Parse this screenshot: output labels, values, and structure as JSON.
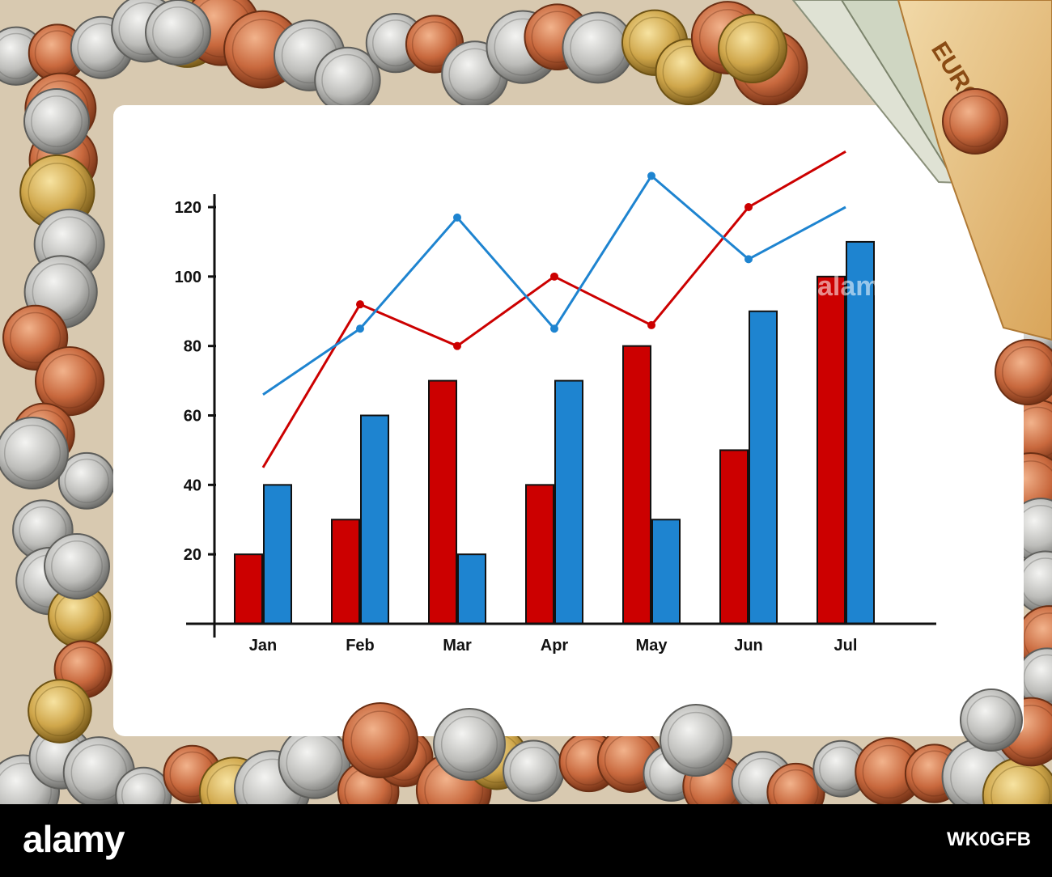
{
  "watermark": {
    "logo": "alamy",
    "image_id": "WK0GFB",
    "overlay": "alamy"
  },
  "colors": {
    "red": "#cc0000",
    "blue": "#1e84d0",
    "axis": "#111111",
    "paper": "#ffffff"
  },
  "chart_data": {
    "type": "bar",
    "title": "",
    "xlabel": "",
    "ylabel": "",
    "categories": [
      "Jan",
      "Feb",
      "Mar",
      "Apr",
      "May",
      "Jun",
      "Jul"
    ],
    "ylim": [
      0,
      120
    ],
    "yticks": [
      "20",
      "40",
      "60",
      "80",
      "100",
      "120"
    ],
    "grid": false,
    "legend": "none",
    "series": [
      {
        "kind": "bar",
        "color": "red",
        "values": [
          20,
          30,
          70,
          40,
          80,
          50,
          100
        ]
      },
      {
        "kind": "bar",
        "color": "blue",
        "values": [
          40,
          60,
          20,
          70,
          30,
          90,
          110
        ]
      },
      {
        "kind": "line",
        "color": "red",
        "values": [
          45,
          92,
          80,
          100,
          86,
          120,
          136
        ]
      },
      {
        "kind": "line",
        "color": "blue",
        "values": [
          66,
          85,
          117,
          85,
          129,
          105,
          120
        ]
      }
    ]
  }
}
